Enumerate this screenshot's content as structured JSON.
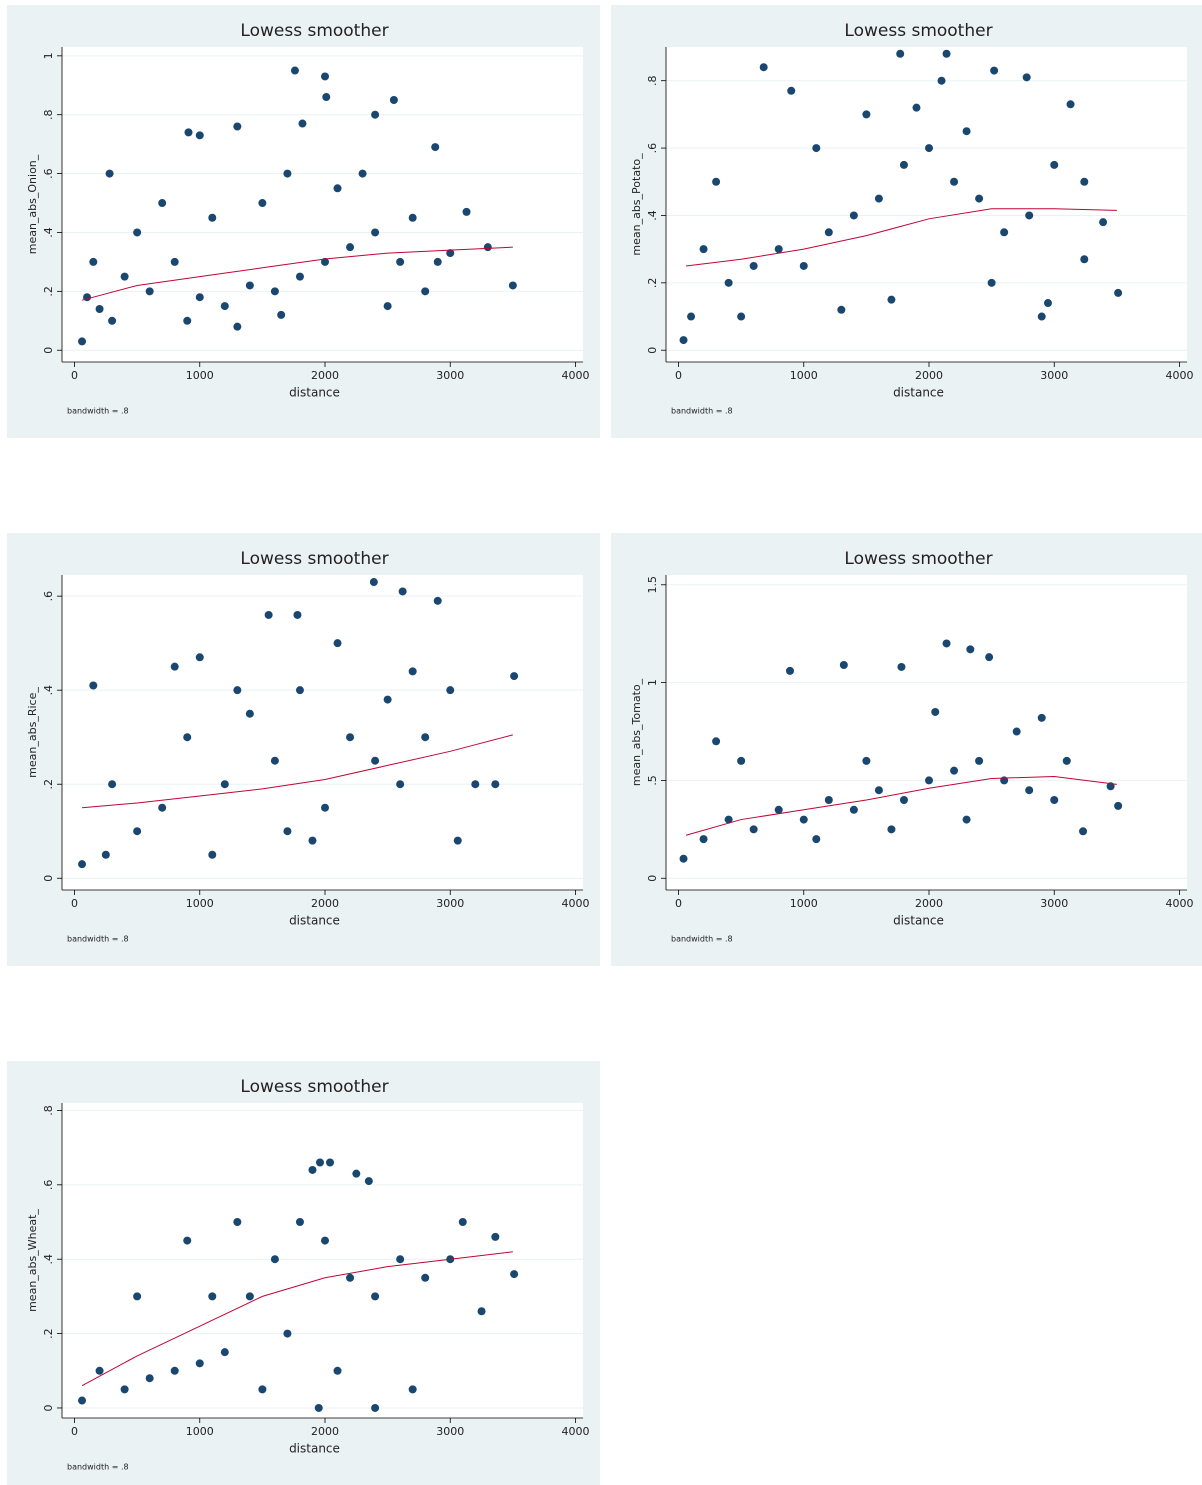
{
  "chart_data": [
    {
      "type": "scatter",
      "title": "Lowess smoother",
      "x_label": "distance",
      "y_label": "mean_abs_Onion_",
      "note": "bandwidth = .8",
      "xlim": [
        -100,
        4060
      ],
      "xticks": [
        0,
        1000,
        2000,
        3000,
        4000
      ],
      "ylim": [
        -0.04,
        1.03
      ],
      "yticks": [
        0,
        {
          "value": 0.2,
          "label": ".2"
        },
        {
          "value": 0.4,
          "label": ".4"
        },
        {
          "value": 0.6,
          "label": ".6"
        },
        {
          "value": 0.8,
          "label": ".8"
        },
        1
      ],
      "grid": true,
      "color": "#1a476f",
      "line_color": "#c10534",
      "points": {
        "x": [
          1760,
          2000,
          2010,
          2550,
          2880,
          3130,
          3500,
          3300,
          280,
          910,
          1000,
          1300,
          1820,
          2400,
          100,
          60,
          200,
          400,
          600,
          800,
          1000,
          1200,
          1400,
          1600,
          1800,
          2000,
          2200,
          2400,
          2600,
          2800,
          3000,
          150,
          500,
          700,
          1100,
          1500,
          1700,
          2100,
          2300,
          2700,
          300,
          900,
          1300,
          1650,
          2500,
          2900
        ],
        "y": [
          0.95,
          0.93,
          0.86,
          0.85,
          0.69,
          0.47,
          0.22,
          0.35,
          0.6,
          0.74,
          0.73,
          0.76,
          0.77,
          0.8,
          0.18,
          0.03,
          0.14,
          0.25,
          0.2,
          0.3,
          0.18,
          0.15,
          0.22,
          0.2,
          0.25,
          0.3,
          0.35,
          0.4,
          0.3,
          0.2,
          0.33,
          0.3,
          0.4,
          0.5,
          0.45,
          0.5,
          0.6,
          0.55,
          0.6,
          0.45,
          0.1,
          0.1,
          0.08,
          0.12,
          0.15,
          0.3
        ]
      },
      "lowess": {
        "x": [
          60,
          500,
          1000,
          1500,
          2000,
          2500,
          3000,
          3500
        ],
        "y": [
          0.17,
          0.22,
          0.25,
          0.28,
          0.31,
          0.33,
          0.34,
          0.35
        ]
      }
    },
    {
      "type": "scatter",
      "title": "Lowess smoother",
      "x_label": "distance",
      "y_label": "mean_abs_Potato_",
      "note": "bandwidth = .8",
      "xlim": [
        -100,
        4060
      ],
      "xticks": [
        0,
        1000,
        2000,
        3000,
        4000
      ],
      "ylim": [
        -0.035,
        0.9
      ],
      "yticks": [
        0,
        {
          "value": 0.2,
          "label": ".2"
        },
        {
          "value": 0.4,
          "label": ".4"
        },
        {
          "value": 0.6,
          "label": ".6"
        },
        {
          "value": 0.8,
          "label": ".8"
        }
      ],
      "grid": true,
      "color": "#1a476f",
      "line_color": "#c10534",
      "points": {
        "x": [
          40,
          680,
          1770,
          2140,
          2520,
          2780,
          3130,
          3240,
          3390,
          3240,
          3510,
          2950,
          200,
          400,
          600,
          800,
          1000,
          1200,
          1400,
          1600,
          1800,
          2000,
          2200,
          2400,
          2600,
          2800,
          3000,
          300,
          900,
          1100,
          1500,
          1900,
          2100,
          2300,
          100,
          500,
          1300,
          1700,
          2500,
          2900
        ],
        "y": [
          0.03,
          0.84,
          0.88,
          0.88,
          0.83,
          0.81,
          0.73,
          0.5,
          0.38,
          0.27,
          0.17,
          0.14,
          0.3,
          0.2,
          0.25,
          0.3,
          0.25,
          0.35,
          0.4,
          0.45,
          0.55,
          0.6,
          0.5,
          0.45,
          0.35,
          0.4,
          0.55,
          0.5,
          0.77,
          0.6,
          0.7,
          0.72,
          0.8,
          0.65,
          0.1,
          0.1,
          0.12,
          0.15,
          0.2,
          0.1
        ]
      },
      "lowess": {
        "x": [
          60,
          500,
          1000,
          1500,
          2000,
          2500,
          3000,
          3500
        ],
        "y": [
          0.25,
          0.27,
          0.3,
          0.34,
          0.39,
          0.42,
          0.42,
          0.415
        ]
      }
    },
    {
      "type": "scatter",
      "title": "Lowess smoother",
      "x_label": "distance",
      "y_label": "mean_abs_Rice_",
      "note": "bandwidth = .8",
      "xlim": [
        -100,
        4060
      ],
      "xticks": [
        0,
        1000,
        2000,
        3000,
        4000
      ],
      "ylim": [
        -0.025,
        0.645
      ],
      "yticks": [
        0,
        {
          "value": 0.2,
          "label": ".2"
        },
        {
          "value": 0.4,
          "label": ".4"
        },
        {
          "value": 0.6,
          "label": ".6"
        }
      ],
      "grid": true,
      "color": "#1a476f",
      "line_color": "#c10534",
      "points": {
        "x": [
          2390,
          2620,
          2900,
          1550,
          1780,
          3510,
          3060,
          3360,
          60,
          150,
          300,
          500,
          700,
          900,
          1000,
          1200,
          1400,
          1600,
          1800,
          2000,
          2200,
          2400,
          2600,
          2800,
          3000,
          3200,
          250,
          1100,
          1900,
          2100,
          2700,
          800,
          1300,
          1700,
          2500
        ],
        "y": [
          0.63,
          0.61,
          0.59,
          0.56,
          0.56,
          0.43,
          0.08,
          0.2,
          0.03,
          0.41,
          0.2,
          0.1,
          0.15,
          0.3,
          0.47,
          0.2,
          0.35,
          0.25,
          0.4,
          0.15,
          0.3,
          0.25,
          0.2,
          0.3,
          0.4,
          0.2,
          0.05,
          0.05,
          0.08,
          0.5,
          0.44,
          0.45,
          0.4,
          0.1,
          0.38
        ]
      },
      "lowess": {
        "x": [
          60,
          500,
          1000,
          1500,
          2000,
          2500,
          3000,
          3500
        ],
        "y": [
          0.15,
          0.16,
          0.175,
          0.19,
          0.21,
          0.24,
          0.27,
          0.305
        ]
      }
    },
    {
      "type": "scatter",
      "title": "Lowess smoother",
      "x_label": "distance",
      "y_label": "mean_abs_Tomato_",
      "note": "bandwidth = .8",
      "xlim": [
        -100,
        4060
      ],
      "xticks": [
        0,
        1000,
        2000,
        3000,
        4000
      ],
      "ylim": [
        -0.06,
        1.55
      ],
      "yticks": [
        0,
        {
          "value": 0.5,
          "label": ".5"
        },
        1,
        1.5
      ],
      "grid": true,
      "color": "#1a476f",
      "line_color": "#c10534",
      "points": {
        "x": [
          2140,
          2330,
          2480,
          1320,
          890,
          1780,
          3510,
          3230,
          3450,
          40,
          200,
          400,
          600,
          800,
          1000,
          1200,
          1400,
          1600,
          1800,
          2000,
          2200,
          2400,
          2600,
          2800,
          3000,
          3100,
          500,
          1100,
          1500,
          2050,
          2700,
          2900,
          300,
          1700,
          2300
        ],
        "y": [
          1.2,
          1.17,
          1.13,
          1.09,
          1.06,
          1.08,
          0.37,
          0.24,
          0.47,
          0.1,
          0.2,
          0.3,
          0.25,
          0.35,
          0.3,
          0.4,
          0.35,
          0.45,
          0.4,
          0.5,
          0.55,
          0.6,
          0.5,
          0.45,
          0.4,
          0.6,
          0.6,
          0.2,
          0.6,
          0.85,
          0.75,
          0.82,
          0.7,
          0.25,
          0.3
        ]
      },
      "lowess": {
        "x": [
          60,
          500,
          1000,
          1500,
          2000,
          2500,
          3000,
          3500
        ],
        "y": [
          0.22,
          0.3,
          0.35,
          0.4,
          0.46,
          0.51,
          0.52,
          0.48
        ]
      }
    },
    {
      "type": "scatter",
      "title": "Lowess smoother",
      "x_label": "distance",
      "y_label": "mean_abs_Wheat_",
      "note": "bandwidth = .8",
      "xlim": [
        -100,
        4060
      ],
      "xticks": [
        0,
        1000,
        2000,
        3000,
        4000
      ],
      "ylim": [
        -0.027,
        0.82
      ],
      "yticks": [
        0,
        {
          "value": 0.2,
          "label": ".2"
        },
        {
          "value": 0.4,
          "label": ".4"
        },
        {
          "value": 0.6,
          "label": ".6"
        },
        {
          "value": 0.8,
          "label": ".8"
        }
      ],
      "grid": true,
      "color": "#1a476f",
      "line_color": "#c10534",
      "points": {
        "x": [
          1960,
          2040,
          1900,
          2250,
          2350,
          3510,
          3250,
          3360,
          60,
          200,
          400,
          600,
          800,
          1000,
          1200,
          1400,
          1600,
          1800,
          2000,
          2200,
          2400,
          2600,
          2800,
          3000,
          500,
          900,
          1300,
          1700,
          1950,
          2400,
          2700,
          1500,
          2100,
          3100,
          1100
        ],
        "y": [
          0.66,
          0.66,
          0.64,
          0.63,
          0.61,
          0.36,
          0.26,
          0.46,
          0.02,
          0.1,
          0.05,
          0.08,
          0.1,
          0.12,
          0.15,
          0.3,
          0.4,
          0.5,
          0.45,
          0.35,
          0.3,
          0.4,
          0.35,
          0.4,
          0.3,
          0.45,
          0.5,
          0.2,
          0,
          0,
          0.05,
          0.05,
          0.1,
          0.5,
          0.3
        ]
      },
      "lowess": {
        "x": [
          60,
          500,
          1000,
          1500,
          2000,
          2500,
          3000,
          3500
        ],
        "y": [
          0.06,
          0.14,
          0.22,
          0.3,
          0.35,
          0.38,
          0.4,
          0.42
        ]
      }
    }
  ]
}
